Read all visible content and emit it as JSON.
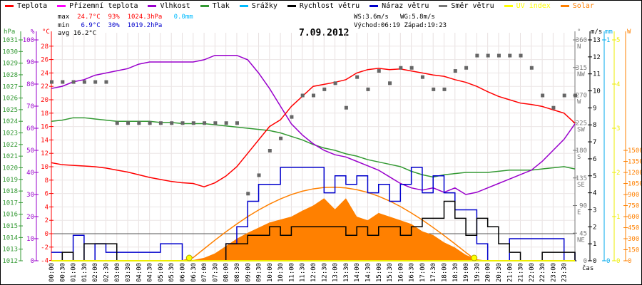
{
  "legend": [
    {
      "label": "Teplota",
      "color": "#ff0000"
    },
    {
      "label": "Přízemní teplota",
      "color": "#ff00ff"
    },
    {
      "label": "Vlhkost",
      "color": "#9900cc"
    },
    {
      "label": "Tlak",
      "color": "#339933"
    },
    {
      "label": "Srážky",
      "color": "#00bbff"
    },
    {
      "label": "Rychlost větru",
      "color": "#000000"
    },
    {
      "label": "Náraz větru",
      "color": "#0000cc"
    },
    {
      "label": "Směr větru",
      "color": "#777777"
    },
    {
      "label": "UV index",
      "color": "#ffff00"
    },
    {
      "label": "Solar",
      "color": "#ff8000"
    }
  ],
  "stats": {
    "max_label": "max",
    "max_temp": "24.7°C",
    "max_hum": "93%",
    "max_press": "1024.3hPa",
    "rain": "0.0mm",
    "min_label": "min",
    "min_temp": "6.9°C",
    "min_hum": "30%",
    "min_press": "1019.2hPa",
    "avg_label": "avg",
    "avg_temp": "16.2°C",
    "ws": "WS:3.6m/s",
    "wg": "WG:5.8m/s",
    "sunrise": "Východ:06:19",
    "sunset": "Západ:19:23"
  },
  "chart_data": {
    "type": "line",
    "title": "7.09.2012",
    "xlabel": "čas",
    "x_ticks": [
      "00:00",
      "00:30",
      "01:00",
      "01:30",
      "02:00",
      "02:30",
      "03:00",
      "03:30",
      "04:00",
      "04:30",
      "05:00",
      "05:30",
      "06:00",
      "06:30",
      "07:00",
      "07:30",
      "08:00",
      "08:30",
      "09:00",
      "09:30",
      "10:00",
      "10:30",
      "11:00",
      "11:30",
      "12:00",
      "12:30",
      "13:00",
      "13:30",
      "14:00",
      "14:30",
      "15:00",
      "15:30",
      "16:00",
      "16:30",
      "17:00",
      "17:30",
      "18:00",
      "18:30",
      "19:00",
      "19:30",
      "20:00",
      "20:30",
      "21:00",
      "21:30",
      "22:00",
      "22:30",
      "23:00",
      "23:30"
    ],
    "x_hours": [
      0,
      0.5,
      1,
      1.5,
      2,
      2.5,
      3,
      3.5,
      4,
      4.5,
      5,
      5.5,
      6,
      6.5,
      7,
      7.5,
      8,
      8.5,
      9,
      9.5,
      10,
      10.5,
      11,
      11.5,
      12,
      12.5,
      13,
      13.5,
      14,
      14.5,
      15,
      15.5,
      16,
      16.5,
      17,
      17.5,
      18,
      18.5,
      19,
      19.5,
      20,
      20.5,
      21,
      21.5,
      22,
      22.5,
      23,
      23.5,
      24
    ],
    "axes": {
      "hPa": {
        "label": "hPa",
        "range": [
          1012,
          1031
        ],
        "color": "#339933"
      },
      "percent": {
        "label": "%",
        "range": [
          0,
          100
        ],
        "color": "#9900cc"
      },
      "celsius": {
        "label": "°C",
        "range": [
          -4,
          29
        ],
        "color": "#ff0000"
      },
      "degrees": {
        "label": "°",
        "range": [
          0,
          360
        ],
        "ticks": [
          {
            "v": 360,
            "d": "N"
          },
          {
            "v": 315,
            "d": "NW"
          },
          {
            "v": 270,
            "d": "W"
          },
          {
            "v": 225,
            "d": "SW"
          },
          {
            "v": 180,
            "d": "S"
          },
          {
            "v": 135,
            "d": "SE"
          },
          {
            "v": 90,
            "d": "E"
          },
          {
            "v": 45,
            "d": "NE"
          },
          {
            "v": 0,
            "d": ""
          }
        ],
        "color": "#777777"
      },
      "ms": {
        "label": "m/s",
        "range": [
          0,
          13
        ],
        "color": "#000000"
      },
      "mm": {
        "label": "mm",
        "range": [
          0,
          1
        ],
        "color": "#00aaee"
      },
      "uv": {
        "label": "",
        "range": [
          0,
          5
        ],
        "color": "#ffff00"
      },
      "watt": {
        "label": "W",
        "range": [
          0,
          1500
        ],
        "color": "#ff8000"
      }
    },
    "series": [
      {
        "name": "Teplota",
        "axis": "celsius",
        "color": "#ff0000",
        "values": [
          10.6,
          10.3,
          10.2,
          10.1,
          10.0,
          9.8,
          9.5,
          9.2,
          8.8,
          8.4,
          8.1,
          7.8,
          7.6,
          7.5,
          7.0,
          7.6,
          8.6,
          10,
          12,
          14,
          16,
          17,
          19,
          20.5,
          22,
          22.3,
          22.6,
          23,
          24,
          24.5,
          24.7,
          24.5,
          24.6,
          24.3,
          24,
          23.7,
          23.5,
          23,
          22.6,
          22,
          21.2,
          20.5,
          20,
          19.5,
          19.3,
          19,
          18.5,
          18,
          16.5
        ]
      },
      {
        "name": "Přízemní teplota",
        "axis": "celsius",
        "color": "#ff00ff",
        "values": [
          0,
          0,
          0,
          0,
          0,
          0,
          0,
          0,
          0,
          0,
          0,
          0,
          0,
          0,
          0,
          0,
          0,
          0,
          0,
          0,
          0,
          0,
          0,
          0,
          0,
          0,
          0,
          0,
          0,
          0,
          0,
          0,
          0,
          0,
          0,
          0,
          0,
          0,
          0,
          0,
          0,
          0,
          0,
          0,
          0,
          0,
          0,
          0,
          0
        ]
      },
      {
        "name": "Vlhkost",
        "axis": "percent",
        "color": "#9900cc",
        "values": [
          78,
          79,
          81,
          82,
          84,
          85,
          86,
          87,
          89,
          90,
          90,
          90,
          90,
          90,
          91,
          93,
          93,
          93,
          91,
          85,
          78,
          70,
          62,
          57,
          53,
          50,
          48,
          47,
          45,
          43,
          41,
          38,
          35,
          33,
          32,
          33,
          31,
          33,
          30,
          31,
          33,
          35,
          37,
          39,
          41,
          45,
          50,
          55,
          62
        ]
      },
      {
        "name": "Tlak",
        "axis": "hPa",
        "color": "#339933",
        "values": [
          1024.0,
          1024.1,
          1024.3,
          1024.3,
          1024.2,
          1024.1,
          1024.0,
          1024.0,
          1024.0,
          1024.0,
          1023.9,
          1023.9,
          1023.8,
          1023.8,
          1023.8,
          1023.7,
          1023.6,
          1023.5,
          1023.4,
          1023.3,
          1023.2,
          1023.0,
          1022.7,
          1022.4,
          1022.0,
          1021.7,
          1021.5,
          1021.2,
          1021.0,
          1020.7,
          1020.5,
          1020.3,
          1020.1,
          1019.7,
          1019.4,
          1019.2,
          1019.4,
          1019.5,
          1019.6,
          1019.6,
          1019.6,
          1019.7,
          1019.8,
          1019.8,
          1019.8,
          1019.9,
          1020.0,
          1020.1,
          1019.9
        ]
      },
      {
        "name": "Rychlost větru",
        "axis": "ms",
        "color": "#000000",
        "values": [
          0,
          0.5,
          0,
          1,
          1,
          1,
          0,
          0,
          0,
          0,
          0,
          0,
          0,
          0,
          0,
          0,
          1,
          1,
          1.5,
          1.5,
          2,
          1.5,
          2,
          2,
          2,
          2,
          2,
          1.5,
          2,
          1.5,
          2,
          2,
          1.5,
          2,
          2.5,
          2.5,
          3.5,
          2.5,
          1.5,
          2.5,
          2,
          1,
          0.5,
          0,
          0,
          0.5,
          0.5,
          0.5,
          0
        ]
      },
      {
        "name": "Náraz větru",
        "axis": "ms",
        "color": "#0000cc",
        "values": [
          0.5,
          0,
          1.5,
          0,
          1,
          0.5,
          0.5,
          0.5,
          0.5,
          0.5,
          1,
          1,
          0,
          0,
          0,
          0,
          1,
          2,
          3.5,
          4.5,
          4.5,
          5.5,
          5.5,
          5.5,
          5.5,
          4,
          5,
          4.5,
          5,
          4,
          4.5,
          3.5,
          4.5,
          5.5,
          4,
          5,
          4,
          3,
          3,
          1,
          0,
          0,
          1.3,
          1.3,
          1.3,
          1.3,
          1.3,
          0,
          0.5
        ]
      },
      {
        "name": "Směr větru",
        "axis": "degrees",
        "color": "#777777",
        "values": [
          292,
          292,
          292,
          292,
          292,
          292,
          225,
          225,
          225,
          225,
          225,
          225,
          225,
          225,
          225,
          225,
          225,
          225,
          110,
          140,
          180,
          200,
          235,
          270,
          270,
          280,
          290,
          250,
          300,
          280,
          310,
          290,
          315,
          315,
          300,
          280,
          280,
          310,
          315,
          335,
          335,
          335,
          335,
          335,
          315,
          270,
          250,
          270,
          270
        ]
      },
      {
        "name": "UV index",
        "axis": "uv",
        "color": "#ffff00",
        "values": [
          0,
          0,
          0,
          0,
          0,
          0,
          0,
          0,
          0,
          0,
          0,
          0,
          0,
          0,
          0,
          0,
          0,
          0,
          0,
          0,
          0,
          0,
          0,
          0,
          0,
          0,
          0,
          0,
          0,
          0,
          0,
          0,
          0,
          0,
          0,
          0,
          0,
          0,
          0,
          0,
          0,
          0,
          0,
          0,
          0,
          0,
          0,
          0,
          0
        ]
      },
      {
        "name": "Solar",
        "axis": "watt",
        "color": "#ff8000",
        "values": [
          0,
          0,
          0,
          0,
          0,
          0,
          0,
          0,
          0,
          0,
          0,
          0,
          0,
          10,
          40,
          100,
          200,
          300,
          380,
          450,
          520,
          560,
          600,
          680,
          750,
          850,
          700,
          850,
          600,
          550,
          650,
          600,
          550,
          500,
          400,
          350,
          250,
          180,
          80,
          20,
          0,
          0,
          0,
          0,
          0,
          0,
          0,
          0,
          0
        ]
      },
      {
        "axis": "watt",
        "color": "#ff8000",
        "values": [
          0,
          0,
          0,
          0,
          0,
          0,
          0,
          0,
          0,
          0,
          0,
          0,
          0,
          43,
          162,
          280,
          393,
          500,
          600,
          690,
          770,
          840,
          900,
          945,
          977,
          996,
          1000,
          990,
          966,
          929,
          877,
          813,
          737,
          650,
          555,
          452,
          343,
          230,
          113,
          0,
          0,
          0,
          0,
          0,
          0,
          0,
          0,
          0,
          0
        ]
      }
    ],
    "sun_markers": [
      6.32,
      19.38
    ]
  }
}
